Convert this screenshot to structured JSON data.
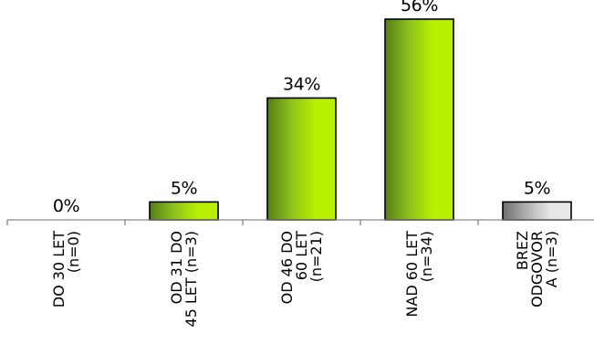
{
  "chart_data": {
    "type": "bar",
    "title": "",
    "xlabel": "",
    "ylabel": "",
    "ylim": [
      0,
      56
    ],
    "grid": false,
    "legend": "none",
    "categories": [
      [
        "DO 30 LET",
        "(n=0)"
      ],
      [
        "OD 31 DO",
        "45 LET (n=3)"
      ],
      [
        "OD 46 DO",
        "60 LET",
        "(n=21)"
      ],
      [
        "NAD 60 LET",
        "(n=34)"
      ],
      [
        "BREZ",
        "ODGOVOR",
        "A (n=3)"
      ]
    ],
    "values": [
      0,
      5,
      34,
      56,
      5
    ],
    "labels": [
      "0%",
      "5%",
      "34%",
      "56%",
      "5%"
    ],
    "bar_styles": [
      "green",
      "green",
      "green",
      "green",
      "gray"
    ]
  },
  "colors": {
    "green_light": "#b8f000",
    "green_mid": "#8cc21c",
    "green_dark": "#557d16",
    "gray_light": "#e8e8e8",
    "gray_mid": "#b0b0b0",
    "gray_dark": "#707070",
    "outline": "#000000",
    "axis": "#868686"
  }
}
